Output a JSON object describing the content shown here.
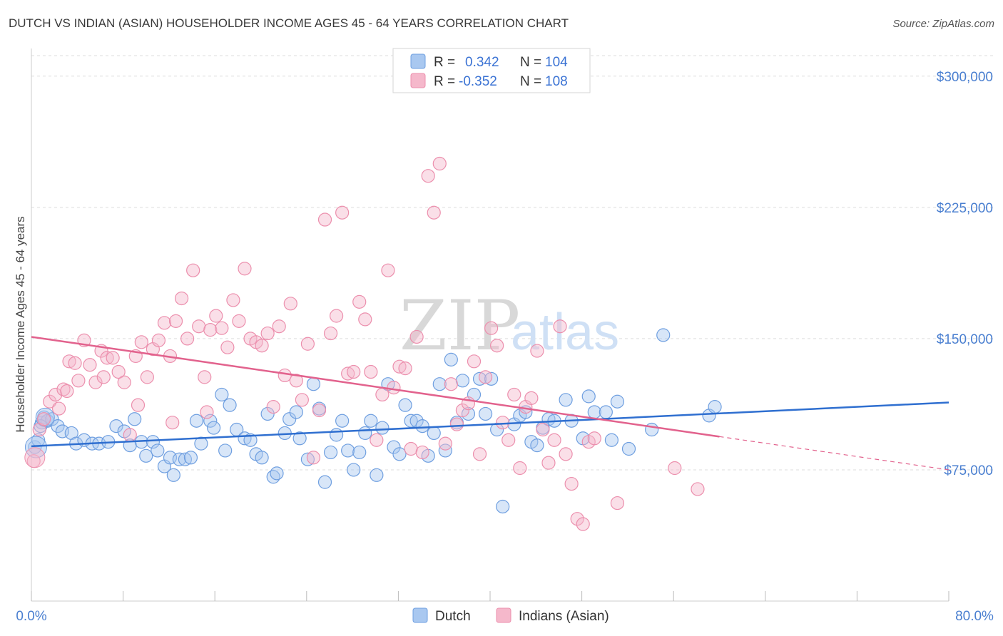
{
  "title": "DUTCH VS INDIAN (ASIAN) HOUSEHOLDER INCOME AGES 45 - 64 YEARS CORRELATION CHART",
  "source": "Source: ZipAtlas.com",
  "watermark": {
    "zip": "ZIP",
    "atlas": "atlas"
  },
  "colors": {
    "dutch_fill": "#a9c8f0",
    "dutch_stroke": "#6f9fe0",
    "dutch_line": "#2f6fd0",
    "indian_fill": "#f5b8cb",
    "indian_stroke": "#ec8fad",
    "indian_line": "#e2628d",
    "axis_text": "#4a7fd0",
    "grid": "#dddddd"
  },
  "legend_top": {
    "rows": [
      {
        "r_label": "R =",
        "r_value": "0.342",
        "n_label": "N =",
        "n_value": "104"
      },
      {
        "r_label": "R =",
        "r_value": "-0.352",
        "n_label": "N =",
        "n_value": "108"
      }
    ]
  },
  "chart_data": {
    "type": "scatter",
    "title": "DUTCH VS INDIAN (ASIAN) HOUSEHOLDER INCOME AGES 45 - 64 YEARS CORRELATION CHART",
    "xlabel": "",
    "ylabel": "Householder Income Ages 45 - 64 years",
    "xlim": [
      0,
      80
    ],
    "ylim": [
      0,
      315000
    ],
    "x_tick_labels": [
      "0.0%",
      "80.0%"
    ],
    "y_ticks": [
      75000,
      150000,
      225000,
      300000
    ],
    "y_tick_labels": [
      "$75,000",
      "$150,000",
      "$225,000",
      "$300,000"
    ],
    "grid": true,
    "legend_position": "bottom-center",
    "series": [
      {
        "name": "Dutch",
        "r": 0.342,
        "n": 104,
        "trend": {
          "x": [
            0,
            80
          ],
          "y": [
            88500,
            113500
          ]
        },
        "points": [
          [
            0.3,
            88000
          ],
          [
            0.6,
            92000
          ],
          [
            0.9,
            102000
          ],
          [
            1.1,
            105000
          ],
          [
            1.4,
            103000
          ],
          [
            1.8,
            104000
          ],
          [
            2.3,
            100000
          ],
          [
            2.7,
            97000
          ],
          [
            3.5,
            96000
          ],
          [
            3.9,
            90000
          ],
          [
            4.6,
            92000
          ],
          [
            5.3,
            90000
          ],
          [
            5.9,
            90000
          ],
          [
            6.7,
            91000
          ],
          [
            7.4,
            100000
          ],
          [
            8.1,
            97000
          ],
          [
            8.6,
            89000
          ],
          [
            9.0,
            104000
          ],
          [
            9.6,
            91000
          ],
          [
            10.0,
            83000
          ],
          [
            10.6,
            91000
          ],
          [
            11.0,
            86000
          ],
          [
            11.6,
            77000
          ],
          [
            12.1,
            82000
          ],
          [
            12.4,
            72000
          ],
          [
            12.9,
            81000
          ],
          [
            13.4,
            81000
          ],
          [
            13.9,
            82000
          ],
          [
            14.4,
            103000
          ],
          [
            14.8,
            90000
          ],
          [
            15.6,
            103000
          ],
          [
            15.9,
            99000
          ],
          [
            16.6,
            118000
          ],
          [
            16.9,
            86000
          ],
          [
            17.3,
            112000
          ],
          [
            17.9,
            98000
          ],
          [
            18.6,
            93000
          ],
          [
            19.1,
            92000
          ],
          [
            19.6,
            84000
          ],
          [
            20.1,
            82000
          ],
          [
            20.6,
            107000
          ],
          [
            21.1,
            71000
          ],
          [
            21.4,
            73000
          ],
          [
            22.1,
            96000
          ],
          [
            22.5,
            104000
          ],
          [
            23.1,
            108000
          ],
          [
            23.4,
            93000
          ],
          [
            24.1,
            81000
          ],
          [
            24.6,
            124000
          ],
          [
            25.1,
            110000
          ],
          [
            25.6,
            68000
          ],
          [
            26.1,
            85000
          ],
          [
            26.6,
            95000
          ],
          [
            27.1,
            103000
          ],
          [
            27.6,
            86000
          ],
          [
            28.1,
            75000
          ],
          [
            28.6,
            85000
          ],
          [
            29.1,
            96000
          ],
          [
            29.6,
            103000
          ],
          [
            30.1,
            72000
          ],
          [
            30.6,
            99000
          ],
          [
            31.1,
            124000
          ],
          [
            31.6,
            88000
          ],
          [
            32.1,
            84000
          ],
          [
            32.6,
            112000
          ],
          [
            33.1,
            103000
          ],
          [
            33.6,
            103000
          ],
          [
            34.1,
            100000
          ],
          [
            34.6,
            83000
          ],
          [
            35.1,
            96000
          ],
          [
            35.6,
            124000
          ],
          [
            36.1,
            86000
          ],
          [
            36.6,
            138000
          ],
          [
            37.1,
            102000
          ],
          [
            37.6,
            126000
          ],
          [
            38.1,
            107000
          ],
          [
            38.6,
            118000
          ],
          [
            39.1,
            127000
          ],
          [
            39.6,
            107000
          ],
          [
            40.1,
            127000
          ],
          [
            40.6,
            98000
          ],
          [
            41.1,
            54000
          ],
          [
            42.1,
            101000
          ],
          [
            42.6,
            106000
          ],
          [
            43.1,
            108000
          ],
          [
            43.6,
            91000
          ],
          [
            44.1,
            89000
          ],
          [
            44.6,
            99000
          ],
          [
            45.1,
            104000
          ],
          [
            45.6,
            103000
          ],
          [
            46.6,
            115000
          ],
          [
            47.1,
            103000
          ],
          [
            48.1,
            93000
          ],
          [
            48.6,
            117000
          ],
          [
            49.1,
            108000
          ],
          [
            50.1,
            108000
          ],
          [
            50.6,
            92000
          ],
          [
            51.1,
            114000
          ],
          [
            52.1,
            87000
          ],
          [
            54.1,
            98000
          ],
          [
            55.1,
            152000
          ],
          [
            59.1,
            106000
          ],
          [
            59.6,
            111000
          ],
          [
            0.8,
            100000
          ]
        ]
      },
      {
        "name": "Indians (Asian)",
        "r": -0.352,
        "n": 108,
        "trend": {
          "x": [
            0,
            60
          ],
          "y": [
            151000,
            94000
          ]
        },
        "trend_dashed": {
          "x": [
            60,
            80
          ],
          "y": [
            94000,
            75000
          ]
        },
        "points": [
          [
            0.2,
            80000
          ],
          [
            0.7,
            98000
          ],
          [
            1.1,
            104000
          ],
          [
            1.6,
            114000
          ],
          [
            2.1,
            118000
          ],
          [
            2.4,
            110000
          ],
          [
            2.8,
            121000
          ],
          [
            3.3,
            137000
          ],
          [
            3.8,
            136000
          ],
          [
            4.1,
            126000
          ],
          [
            4.6,
            149000
          ],
          [
            5.1,
            135000
          ],
          [
            5.6,
            125000
          ],
          [
            6.1,
            143000
          ],
          [
            6.6,
            139000
          ],
          [
            7.1,
            139000
          ],
          [
            7.6,
            131000
          ],
          [
            8.1,
            125000
          ],
          [
            8.6,
            95000
          ],
          [
            9.1,
            140000
          ],
          [
            9.6,
            148000
          ],
          [
            10.1,
            128000
          ],
          [
            10.6,
            144000
          ],
          [
            11.1,
            149000
          ],
          [
            11.6,
            159000
          ],
          [
            12.1,
            140000
          ],
          [
            12.6,
            160000
          ],
          [
            13.1,
            173000
          ],
          [
            13.6,
            150000
          ],
          [
            14.1,
            189000
          ],
          [
            14.6,
            157000
          ],
          [
            15.1,
            128000
          ],
          [
            15.6,
            155000
          ],
          [
            16.1,
            163000
          ],
          [
            16.6,
            156000
          ],
          [
            17.1,
            145000
          ],
          [
            17.6,
            172000
          ],
          [
            18.1,
            160000
          ],
          [
            18.6,
            190000
          ],
          [
            19.1,
            150000
          ],
          [
            19.6,
            148000
          ],
          [
            20.1,
            146000
          ],
          [
            20.6,
            153000
          ],
          [
            21.1,
            111000
          ],
          [
            21.6,
            157000
          ],
          [
            22.1,
            129000
          ],
          [
            22.6,
            170000
          ],
          [
            23.1,
            126000
          ],
          [
            23.6,
            115000
          ],
          [
            24.1,
            147000
          ],
          [
            24.6,
            82000
          ],
          [
            25.1,
            109000
          ],
          [
            25.6,
            218000
          ],
          [
            26.1,
            153000
          ],
          [
            26.6,
            163000
          ],
          [
            27.1,
            222000
          ],
          [
            27.6,
            130000
          ],
          [
            28.1,
            131000
          ],
          [
            28.6,
            171000
          ],
          [
            29.1,
            161000
          ],
          [
            29.6,
            131000
          ],
          [
            30.1,
            92000
          ],
          [
            30.6,
            118000
          ],
          [
            31.1,
            189000
          ],
          [
            31.6,
            122000
          ],
          [
            32.1,
            134000
          ],
          [
            32.6,
            133000
          ],
          [
            33.1,
            87000
          ],
          [
            33.6,
            151000
          ],
          [
            34.1,
            85000
          ],
          [
            34.6,
            243000
          ],
          [
            35.1,
            222000
          ],
          [
            35.6,
            250000
          ],
          [
            36.1,
            90000
          ],
          [
            36.6,
            124000
          ],
          [
            37.1,
            101000
          ],
          [
            37.6,
            109000
          ],
          [
            38.1,
            113000
          ],
          [
            38.6,
            137000
          ],
          [
            39.1,
            84000
          ],
          [
            39.6,
            128000
          ],
          [
            40.1,
            156000
          ],
          [
            40.6,
            146000
          ],
          [
            41.1,
            102000
          ],
          [
            41.6,
            92000
          ],
          [
            42.1,
            118000
          ],
          [
            42.6,
            76000
          ],
          [
            43.1,
            111000
          ],
          [
            43.6,
            116000
          ],
          [
            44.1,
            143000
          ],
          [
            44.6,
            98000
          ],
          [
            45.1,
            79000
          ],
          [
            45.6,
            92000
          ],
          [
            46.1,
            157000
          ],
          [
            46.6,
            84000
          ],
          [
            47.1,
            67000
          ],
          [
            47.6,
            47000
          ],
          [
            48.1,
            44000
          ],
          [
            48.6,
            91000
          ],
          [
            49.1,
            93000
          ],
          [
            51.1,
            56000
          ],
          [
            56.1,
            76000
          ],
          [
            58.1,
            64000
          ],
          [
            3.1,
            120000
          ],
          [
            6.3,
            128000
          ],
          [
            9.3,
            112000
          ],
          [
            12.3,
            102000
          ],
          [
            15.3,
            108000
          ]
        ]
      }
    ]
  },
  "legend_bottom": {
    "items": [
      "Dutch",
      "Indians (Asian)"
    ]
  }
}
